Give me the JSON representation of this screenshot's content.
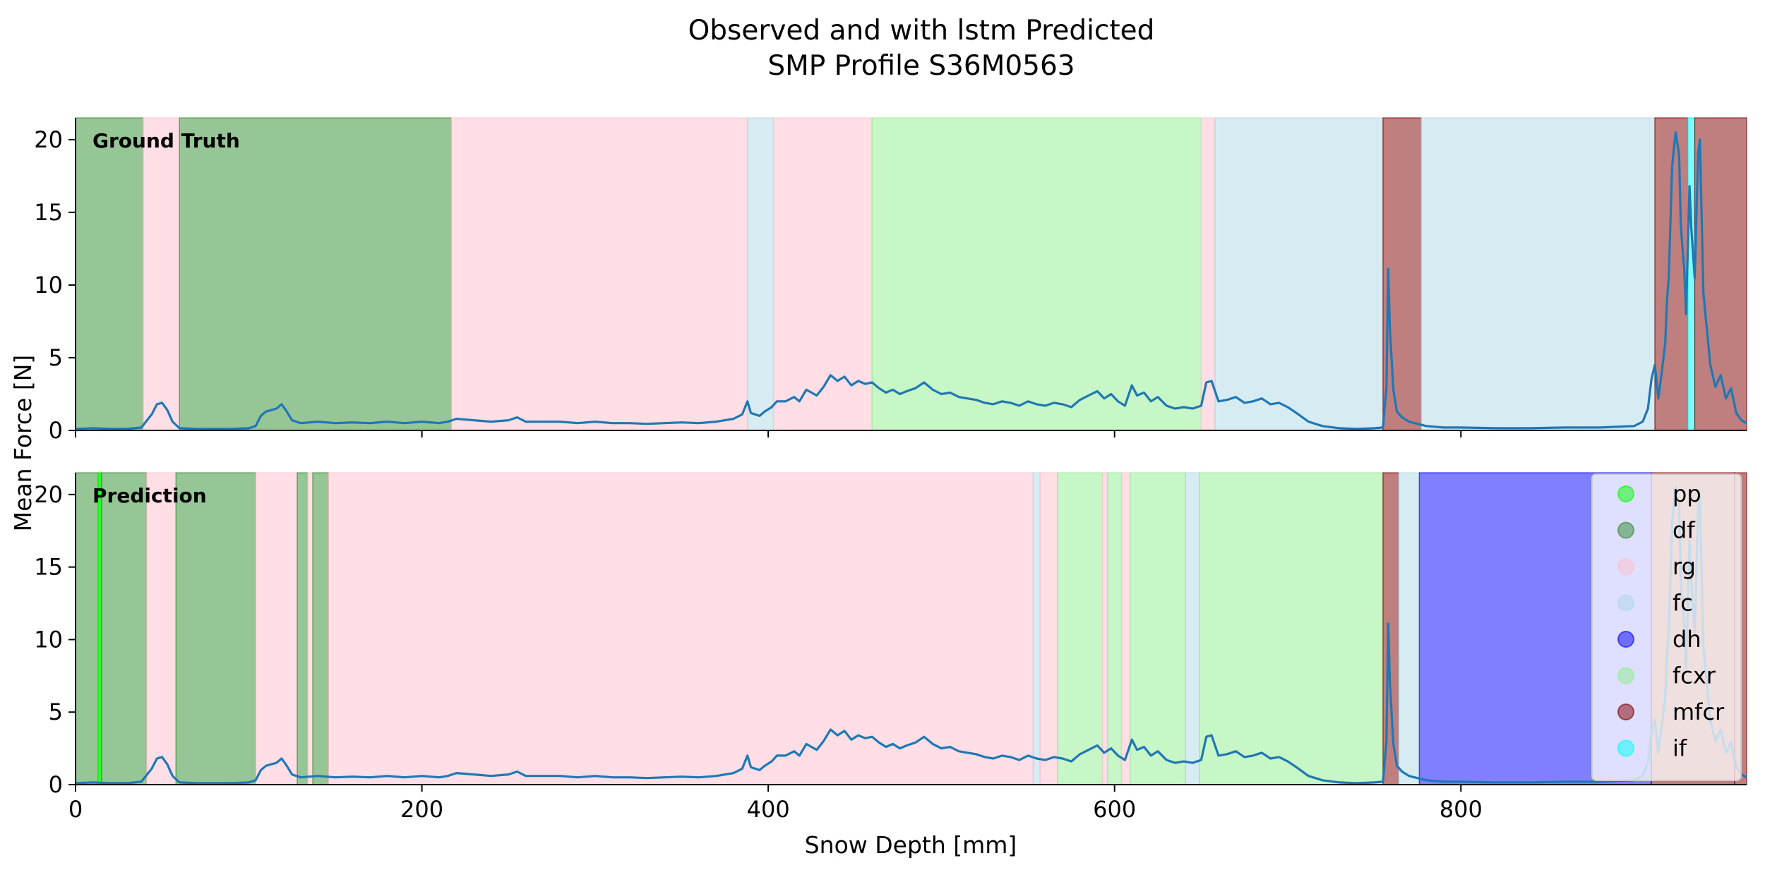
{
  "title_line1": "Observed and with lstm Predicted",
  "title_line2": "SMP Profile S36M0563",
  "chart_data": {
    "type": "line",
    "xlabel": "Snow Depth [mm]",
    "ylabel": "Mean Force [N]",
    "xlim": [
      0,
      965
    ],
    "ylim": [
      0,
      21.5
    ],
    "xticks": [
      0,
      200,
      400,
      600,
      800
    ],
    "yticks": [
      0,
      5,
      10,
      15,
      20
    ],
    "grid": false,
    "legend_placement": "right",
    "classes": [
      {
        "name": "pp",
        "color": "#00ff00"
      },
      {
        "name": "df",
        "color": "#2e8b2e"
      },
      {
        "name": "rg",
        "color": "#ffc0cb"
      },
      {
        "name": "fc",
        "color": "#add8e6"
      },
      {
        "name": "dh",
        "color": "#0000ff"
      },
      {
        "name": "fcxr",
        "color": "#90ee90"
      },
      {
        "name": "mfcr",
        "color": "#800000"
      },
      {
        "name": "if",
        "color": "#00ffff"
      }
    ],
    "line_color": "#1f77b4",
    "force_profile": [
      [
        0,
        0.1
      ],
      [
        10,
        0.15
      ],
      [
        20,
        0.1
      ],
      [
        30,
        0.1
      ],
      [
        38,
        0.2
      ],
      [
        44,
        1.1
      ],
      [
        47,
        1.8
      ],
      [
        50,
        1.9
      ],
      [
        53,
        1.4
      ],
      [
        56,
        0.6
      ],
      [
        60,
        0.15
      ],
      [
        70,
        0.1
      ],
      [
        80,
        0.1
      ],
      [
        90,
        0.1
      ],
      [
        100,
        0.15
      ],
      [
        104,
        0.3
      ],
      [
        107,
        1.0
      ],
      [
        110,
        1.3
      ],
      [
        113,
        1.4
      ],
      [
        116,
        1.5
      ],
      [
        119,
        1.8
      ],
      [
        122,
        1.3
      ],
      [
        125,
        0.7
      ],
      [
        130,
        0.5
      ],
      [
        140,
        0.6
      ],
      [
        150,
        0.5
      ],
      [
        160,
        0.55
      ],
      [
        170,
        0.5
      ],
      [
        180,
        0.6
      ],
      [
        190,
        0.5
      ],
      [
        200,
        0.6
      ],
      [
        210,
        0.5
      ],
      [
        215,
        0.6
      ],
      [
        220,
        0.8
      ],
      [
        230,
        0.7
      ],
      [
        240,
        0.6
      ],
      [
        250,
        0.7
      ],
      [
        255,
        0.9
      ],
      [
        260,
        0.6
      ],
      [
        270,
        0.6
      ],
      [
        280,
        0.6
      ],
      [
        290,
        0.5
      ],
      [
        300,
        0.6
      ],
      [
        310,
        0.5
      ],
      [
        320,
        0.5
      ],
      [
        330,
        0.45
      ],
      [
        340,
        0.5
      ],
      [
        350,
        0.55
      ],
      [
        360,
        0.5
      ],
      [
        370,
        0.6
      ],
      [
        380,
        0.8
      ],
      [
        385,
        1.1
      ],
      [
        388,
        2.0
      ],
      [
        390,
        1.2
      ],
      [
        395,
        1.0
      ],
      [
        398,
        1.3
      ],
      [
        402,
        1.6
      ],
      [
        405,
        2.0
      ],
      [
        410,
        2.0
      ],
      [
        415,
        2.3
      ],
      [
        418,
        2.0
      ],
      [
        422,
        2.8
      ],
      [
        428,
        2.4
      ],
      [
        432,
        3.0
      ],
      [
        436,
        3.8
      ],
      [
        440,
        3.4
      ],
      [
        444,
        3.7
      ],
      [
        448,
        3.1
      ],
      [
        452,
        3.4
      ],
      [
        456,
        3.2
      ],
      [
        460,
        3.3
      ],
      [
        464,
        2.9
      ],
      [
        468,
        2.6
      ],
      [
        472,
        2.8
      ],
      [
        476,
        2.5
      ],
      [
        480,
        2.7
      ],
      [
        485,
        2.9
      ],
      [
        490,
        3.3
      ],
      [
        495,
        2.8
      ],
      [
        500,
        2.5
      ],
      [
        505,
        2.6
      ],
      [
        510,
        2.3
      ],
      [
        515,
        2.2
      ],
      [
        520,
        2.1
      ],
      [
        525,
        1.9
      ],
      [
        530,
        1.8
      ],
      [
        535,
        2.0
      ],
      [
        540,
        1.9
      ],
      [
        545,
        1.7
      ],
      [
        550,
        2.0
      ],
      [
        555,
        1.8
      ],
      [
        560,
        1.7
      ],
      [
        565,
        1.9
      ],
      [
        570,
        1.8
      ],
      [
        575,
        1.6
      ],
      [
        580,
        2.1
      ],
      [
        585,
        2.4
      ],
      [
        590,
        2.7
      ],
      [
        594,
        2.2
      ],
      [
        598,
        2.5
      ],
      [
        602,
        2.0
      ],
      [
        606,
        1.7
      ],
      [
        610,
        3.1
      ],
      [
        613,
        2.4
      ],
      [
        617,
        2.6
      ],
      [
        621,
        2.0
      ],
      [
        625,
        2.3
      ],
      [
        630,
        1.7
      ],
      [
        635,
        1.5
      ],
      [
        640,
        1.6
      ],
      [
        645,
        1.5
      ],
      [
        650,
        1.7
      ],
      [
        653,
        3.3
      ],
      [
        656,
        3.4
      ],
      [
        660,
        2.0
      ],
      [
        665,
        2.1
      ],
      [
        670,
        2.3
      ],
      [
        675,
        1.9
      ],
      [
        680,
        2.0
      ],
      [
        685,
        2.2
      ],
      [
        690,
        1.8
      ],
      [
        695,
        1.9
      ],
      [
        700,
        1.6
      ],
      [
        705,
        1.2
      ],
      [
        712,
        0.6
      ],
      [
        720,
        0.3
      ],
      [
        730,
        0.15
      ],
      [
        740,
        0.1
      ],
      [
        750,
        0.15
      ],
      [
        755,
        0.2
      ],
      [
        757,
        3.0
      ],
      [
        758,
        11.1
      ],
      [
        759,
        7.0
      ],
      [
        761,
        2.8
      ],
      [
        763,
        1.3
      ],
      [
        766,
        0.9
      ],
      [
        770,
        0.6
      ],
      [
        780,
        0.3
      ],
      [
        790,
        0.2
      ],
      [
        800,
        0.2
      ],
      [
        820,
        0.15
      ],
      [
        840,
        0.15
      ],
      [
        860,
        0.2
      ],
      [
        880,
        0.2
      ],
      [
        900,
        0.3
      ],
      [
        905,
        0.6
      ],
      [
        908,
        1.5
      ],
      [
        910,
        3.5
      ],
      [
        912,
        4.5
      ],
      [
        914,
        2.2
      ],
      [
        916,
        4.0
      ],
      [
        918,
        6.0
      ],
      [
        919,
        9.0
      ],
      [
        920,
        10.5
      ],
      [
        922,
        18.2
      ],
      [
        924,
        20.5
      ],
      [
        926,
        19.0
      ],
      [
        927,
        14.0
      ],
      [
        929,
        11.0
      ],
      [
        930,
        8.0
      ],
      [
        932,
        16.8
      ],
      [
        933,
        14.0
      ],
      [
        935,
        10.5
      ],
      [
        937,
        19.1
      ],
      [
        938,
        20.0
      ],
      [
        940,
        9.5
      ],
      [
        942,
        7.0
      ],
      [
        944,
        4.5
      ],
      [
        947,
        3.0
      ],
      [
        950,
        3.8
      ],
      [
        953,
        2.2
      ],
      [
        956,
        2.9
      ],
      [
        959,
        1.2
      ],
      [
        962,
        0.7
      ],
      [
        965,
        0.5
      ]
    ],
    "panels": [
      {
        "label": "Ground Truth",
        "segments": [
          {
            "from": 0,
            "to": 39,
            "class": "df"
          },
          {
            "from": 39,
            "to": 60,
            "class": "rg"
          },
          {
            "from": 60,
            "to": 217,
            "class": "df"
          },
          {
            "from": 217,
            "to": 388,
            "class": "rg"
          },
          {
            "from": 388,
            "to": 403,
            "class": "fc"
          },
          {
            "from": 403,
            "to": 460,
            "class": "rg"
          },
          {
            "from": 460,
            "to": 650,
            "class": "fcxr"
          },
          {
            "from": 650,
            "to": 658,
            "class": "rg"
          },
          {
            "from": 658,
            "to": 755,
            "class": "fc"
          },
          {
            "from": 755,
            "to": 777,
            "class": "mfcr"
          },
          {
            "from": 777,
            "to": 912,
            "class": "fc"
          },
          {
            "from": 912,
            "to": 931,
            "class": "mfcr"
          },
          {
            "from": 931,
            "to": 935,
            "class": "if"
          },
          {
            "from": 935,
            "to": 965,
            "class": "mfcr"
          }
        ]
      },
      {
        "label": "Prediction",
        "segments": [
          {
            "from": 0,
            "to": 13,
            "class": "df"
          },
          {
            "from": 13,
            "to": 15,
            "class": "pp"
          },
          {
            "from": 15,
            "to": 41,
            "class": "df"
          },
          {
            "from": 41,
            "to": 58,
            "class": "rg"
          },
          {
            "from": 58,
            "to": 104,
            "class": "df"
          },
          {
            "from": 104,
            "to": 128,
            "class": "rg"
          },
          {
            "from": 128,
            "to": 134,
            "class": "df"
          },
          {
            "from": 134,
            "to": 137,
            "class": "rg"
          },
          {
            "from": 137,
            "to": 146,
            "class": "df"
          },
          {
            "from": 146,
            "to": 553,
            "class": "rg"
          },
          {
            "from": 553,
            "to": 557,
            "class": "fc"
          },
          {
            "from": 557,
            "to": 567,
            "class": "rg"
          },
          {
            "from": 567,
            "to": 593,
            "class": "fcxr"
          },
          {
            "from": 593,
            "to": 596,
            "class": "rg"
          },
          {
            "from": 596,
            "to": 604,
            "class": "fcxr"
          },
          {
            "from": 604,
            "to": 609,
            "class": "rg"
          },
          {
            "from": 609,
            "to": 641,
            "class": "fcxr"
          },
          {
            "from": 641,
            "to": 649,
            "class": "fc"
          },
          {
            "from": 649,
            "to": 755,
            "class": "fcxr"
          },
          {
            "from": 755,
            "to": 764,
            "class": "mfcr"
          },
          {
            "from": 764,
            "to": 776,
            "class": "fc"
          },
          {
            "from": 776,
            "to": 910,
            "class": "dh"
          },
          {
            "from": 910,
            "to": 958,
            "class": "mfcr"
          },
          {
            "from": 958,
            "to": 965,
            "class": "mfcr"
          }
        ]
      }
    ]
  }
}
